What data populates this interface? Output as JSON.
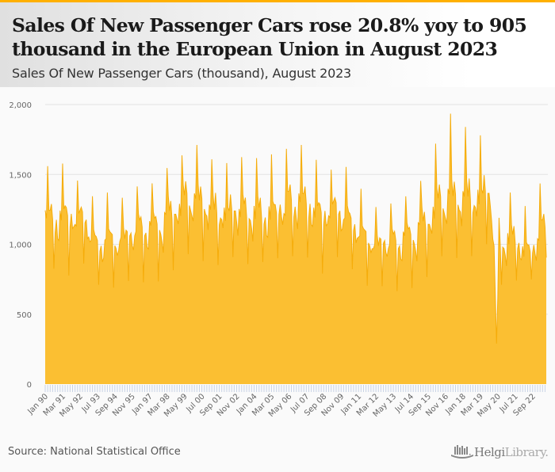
{
  "header": {
    "title": "Sales Of New Passenger Cars rose 20.8% yoy to 905 thousand in the European Union in August 2023",
    "subtitle": "Sales Of New Passenger Cars (thousand), August 2023"
  },
  "footer": {
    "source": "Source: National Statistical Office",
    "logo_part1": "Helgi",
    "logo_part2": "Library."
  },
  "colors": {
    "accent": "#ffb000",
    "area_fill": "#fbbf32",
    "area_line": "#f5ac0a",
    "grid": "#e3e3e3",
    "tick_marks": "#c8d3e6"
  },
  "chart_data": {
    "type": "area",
    "title": "Sales Of New Passenger Cars (thousand), August 2023",
    "xlabel": "",
    "ylabel": "",
    "ylim": [
      0,
      2000
    ],
    "yticks": [
      0,
      500,
      1000,
      1500,
      2000
    ],
    "ytick_labels": [
      "0",
      "500",
      "1,000",
      "1,500",
      "2,000"
    ],
    "grid": true,
    "legend": "none",
    "start": "Jan 90",
    "end": "Aug 23",
    "frequency": "monthly",
    "xtick_labels": [
      "Jan 90",
      "Mar 91",
      "May 92",
      "Jul 93",
      "Sep 94",
      "Nov 95",
      "Jan 97",
      "Mar 98",
      "May 99",
      "Jul 00",
      "Sep 01",
      "Nov 02",
      "Jan 04",
      "Mar 05",
      "May 06",
      "Jul 07",
      "Sep 08",
      "Nov 09",
      "Jan 11",
      "Mar 12",
      "May 13",
      "Jul 14",
      "Sep 15",
      "Nov 16",
      "Jan 18",
      "Mar 19",
      "May 20",
      "Jul 21",
      "Sep 22"
    ],
    "xtick_every_months": 14,
    "annual_levels": [
      1130,
      1160,
      1120,
      960,
      1000,
      1010,
      1040,
      1080,
      1180,
      1240,
      1240,
      1200,
      1180,
      1160,
      1180,
      1200,
      1220,
      1240,
      1180,
      1180,
      1110,
      1020,
      960,
      950,
      1010,
      1110,
      1220,
      1270,
      1290,
      1300,
      960,
      1000,
      930,
      1040
    ],
    "seasonal_profile": [
      1.05,
      1.02,
      1.35,
      1.12,
      1.08,
      1.12,
      1.05,
      0.72,
      1.0,
      1.02,
      0.95,
      0.92
    ],
    "noise": [
      0.04,
      -0.03,
      0.02,
      0.05,
      -0.04,
      0.01,
      -0.02,
      0.03,
      -0.05,
      0.02,
      0.04,
      -0.01,
      0.0,
      0.03,
      -0.02,
      -0.04,
      0.05,
      0.01,
      -0.03,
      0.02,
      0.04,
      -0.05,
      0.01,
      0.03,
      -0.02,
      0.02,
      -0.04,
      0.05,
      0.0,
      -0.01,
      0.03,
      -0.03,
      0.02,
      -0.02
    ],
    "overrides": {
      "2020-04": 290,
      "2020-03": 640,
      "2020-05": 620,
      "2020-06": 1190,
      "2023-08": 905,
      "2022-08": 749,
      "2017-03": 1935,
      "2018-03": 1840,
      "2019-03": 1780,
      "2016-03": 1720
    }
  }
}
